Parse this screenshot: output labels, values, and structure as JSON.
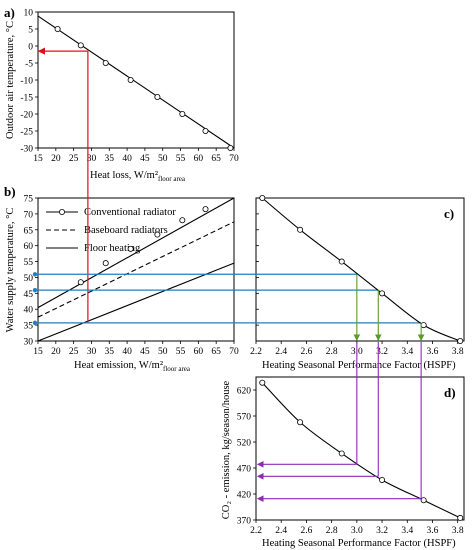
{
  "colors": {
    "red": "#e0101a",
    "blue": "#1f7fc0",
    "green": "#5a9a2a",
    "purple": "#8a2bb8",
    "black": "#000000"
  },
  "panels": {
    "a": {
      "label": "a)",
      "xlabel": "Heat loss, W/m²",
      "xlabel_sub": "floor area",
      "ylabel": "Outdoor air temperature, °C",
      "xticks": [
        "15",
        "20",
        "25",
        "30",
        "35",
        "40",
        "45",
        "50",
        "55",
        "60",
        "65",
        "70"
      ],
      "yticks": [
        "10",
        "5",
        "0",
        "-5",
        "-10",
        "-15",
        "-20",
        "-25",
        "-30"
      ]
    },
    "b": {
      "label": "b)",
      "xlabel": "Heat emission, W/m²",
      "xlabel_sub": "floor area",
      "ylabel": "Water supply temperature, °C",
      "xticks": [
        "15",
        "20",
        "25",
        "30",
        "35",
        "40",
        "45",
        "50",
        "55",
        "60",
        "65",
        "70"
      ],
      "yticks": [
        "75",
        "70",
        "65",
        "60",
        "55",
        "50",
        "45",
        "40",
        "35",
        "30"
      ],
      "legend": [
        "Conventional radiator",
        "Baseboard radiators",
        "Floor heating"
      ]
    },
    "c": {
      "label": "c)",
      "xlabel": "Heating Seasonal Performance Factor (HSPF)",
      "xticks": [
        "2.2",
        "2.4",
        "2.6",
        "2.8",
        "3.0",
        "3.2",
        "3.4",
        "3.6",
        "3.8"
      ]
    },
    "d": {
      "label": "d)",
      "xlabel": "Heating Seasonal Performance Factor (HSPF)",
      "ylabel": "CO₂ - emission, kg/season/house",
      "xticks": [
        "2.2",
        "2.4",
        "2.6",
        "2.8",
        "3.0",
        "3.2",
        "3.4",
        "3.6",
        "3.8"
      ],
      "yticks": [
        "620",
        "570",
        "520",
        "470",
        "420",
        "370"
      ]
    }
  },
  "chart_data": [
    {
      "type": "line",
      "panel": "a",
      "xlabel": "Heat loss, W/m² floor area",
      "ylabel": "Outdoor air temperature, °C",
      "xlim": [
        15,
        70
      ],
      "ylim": [
        -30,
        10
      ],
      "series": [
        {
          "x": [
            15,
            70
          ],
          "y": [
            8.8,
            -30
          ]
        }
      ],
      "markers": {
        "x": [
          20.5,
          27,
          34,
          41,
          48.5,
          55.5,
          62,
          69
        ],
        "y": [
          5,
          0.2,
          -5,
          -10,
          -15,
          -20,
          -25,
          -30
        ]
      },
      "guide": {
        "x": 29,
        "y": -1.5
      }
    },
    {
      "type": "line",
      "panel": "b",
      "xlabel": "Heat emission, W/m² floor area",
      "ylabel": "Water supply temperature, °C",
      "xlim": [
        15,
        70
      ],
      "ylim": [
        30,
        75
      ],
      "series": [
        {
          "name": "Conventional radiator",
          "x": [
            15,
            70
          ],
          "y": [
            40.5,
            75
          ]
        },
        {
          "name": "Baseboard radiators",
          "x": [
            15,
            70
          ],
          "y": [
            37.5,
            67.5
          ]
        },
        {
          "name": "Floor heating",
          "x": [
            15,
            70
          ],
          "y": [
            30,
            54.5
          ]
        }
      ],
      "markers": {
        "x": [
          27,
          34,
          41,
          48.5,
          55.5,
          62
        ],
        "y": [
          48.5,
          54.5,
          59,
          63.5,
          68,
          71.5
        ]
      },
      "guides": {
        "x": 29,
        "levels": [
          51,
          46,
          35.7
        ]
      }
    },
    {
      "type": "line",
      "panel": "c",
      "xlabel": "Heating Seasonal Performance Factor (HSPF)",
      "xlim": [
        2.2,
        3.85
      ],
      "ylim": [
        30,
        75
      ],
      "series": [
        {
          "x": [
            2.25,
            2.55,
            2.88,
            3.2,
            3.53,
            3.82
          ],
          "y": [
            75,
            65,
            55,
            45,
            35,
            30
          ]
        }
      ],
      "markers": {
        "x": [
          2.25,
          2.55,
          2.88,
          3.2,
          3.53,
          3.82
        ],
        "y": [
          75,
          65,
          55,
          45,
          35,
          30
        ]
      },
      "reads": [
        3.0,
        3.17,
        3.51
      ]
    },
    {
      "type": "line",
      "panel": "d",
      "xlabel": "Heating Seasonal Performance Factor (HSPF)",
      "ylabel": "CO₂ - emission, kg/season/house",
      "xlim": [
        2.2,
        3.85
      ],
      "ylim": [
        370,
        645
      ],
      "series": [
        {
          "x": [
            2.25,
            2.55,
            2.88,
            3.2,
            3.53,
            3.82
          ],
          "y": [
            634,
            558,
            498,
            447,
            408,
            374
          ]
        }
      ],
      "markers": {
        "x": [
          2.25,
          2.55,
          2.88,
          3.2,
          3.53,
          3.82
        ],
        "y": [
          634,
          558,
          498,
          447,
          408,
          374
        ]
      },
      "reads": {
        "x": [
          3.0,
          3.17,
          3.51
        ],
        "y": [
          477,
          454,
          411
        ]
      }
    }
  ]
}
